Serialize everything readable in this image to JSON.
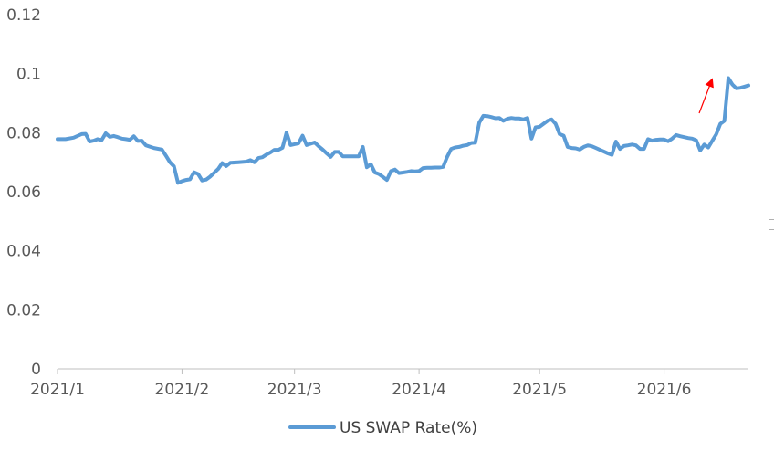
{
  "chart_data": {
    "type": "line",
    "title": "",
    "xlabel": "",
    "ylabel": "",
    "ylim": [
      0,
      0.12
    ],
    "ytick_labels": [
      "0",
      "0.02",
      "0.04",
      "0.06",
      "0.08",
      "0.1",
      "0.12"
    ],
    "yticks": [
      0,
      0.02,
      0.04,
      0.06,
      0.08,
      0.1,
      0.12
    ],
    "xtick_labels": [
      "2021/1",
      "2021/2",
      "2021/3",
      "2021/4",
      "2021/5",
      "2021/6"
    ],
    "xticks": [
      0,
      31,
      59,
      90,
      120,
      151
    ],
    "xlim": [
      0,
      172
    ],
    "grid": false,
    "legend_position": "bottom",
    "series": [
      {
        "name": "US SWAP Rate(%)",
        "color": "#5b9bd5",
        "x": [
          0,
          2,
          4,
          6,
          7,
          8,
          9,
          10,
          11,
          12,
          13,
          14,
          15,
          16,
          17,
          18,
          19,
          20,
          21,
          22,
          24,
          26,
          27,
          28,
          29,
          30,
          31,
          32,
          33,
          34,
          35,
          36,
          37,
          38,
          39,
          40,
          41,
          42,
          43,
          45,
          47,
          48,
          49,
          50,
          51,
          52,
          53,
          54,
          55,
          56,
          57,
          58,
          59,
          60,
          61,
          62,
          64,
          65,
          66,
          67,
          68,
          69,
          70,
          71,
          72,
          73,
          74,
          75,
          76,
          77,
          78,
          79,
          80,
          81,
          82,
          83,
          84,
          85,
          86,
          87,
          88,
          89,
          90,
          91,
          92,
          93,
          94,
          95,
          96,
          97,
          98,
          99,
          100,
          101,
          102,
          103,
          104,
          105,
          106,
          107,
          108,
          109,
          110,
          111,
          112,
          113,
          114,
          115,
          116,
          117,
          118,
          119,
          120,
          121,
          122,
          123,
          124,
          125,
          126,
          127,
          128,
          129,
          130,
          131,
          132,
          133,
          134,
          135,
          136,
          137,
          138,
          139,
          140,
          141,
          142,
          143,
          144,
          145,
          146,
          147,
          148,
          149,
          150,
          151,
          152,
          153,
          154,
          155,
          156,
          157,
          158,
          159,
          160,
          161,
          162,
          163,
          164,
          165,
          166,
          167,
          168,
          169,
          170,
          171,
          172
        ],
        "values": [
          0.0778,
          0.0778,
          0.0783,
          0.0795,
          0.0796,
          0.077,
          0.0773,
          0.0778,
          0.0775,
          0.0798,
          0.0786,
          0.0789,
          0.0785,
          0.078,
          0.0778,
          0.0776,
          0.0788,
          0.0772,
          0.0773,
          0.0757,
          0.0748,
          0.0743,
          0.0722,
          0.07,
          0.0686,
          0.063,
          0.0636,
          0.064,
          0.0642,
          0.0666,
          0.066,
          0.0638,
          0.0641,
          0.0651,
          0.0664,
          0.0677,
          0.0697,
          0.0687,
          0.0698,
          0.07,
          0.0702,
          0.0707,
          0.07,
          0.0714,
          0.0717,
          0.0726,
          0.0733,
          0.0742,
          0.0742,
          0.0749,
          0.08,
          0.0758,
          0.0761,
          0.0764,
          0.079,
          0.0758,
          0.0767,
          0.0754,
          0.0743,
          0.073,
          0.0718,
          0.0735,
          0.0735,
          0.072,
          0.072,
          0.072,
          0.072,
          0.072,
          0.0752,
          0.0683,
          0.0693,
          0.0665,
          0.066,
          0.065,
          0.064,
          0.067,
          0.0675,
          0.0663,
          0.0665,
          0.0667,
          0.067,
          0.0669,
          0.067,
          0.068,
          0.0681,
          0.0681,
          0.0682,
          0.0682,
          0.0684,
          0.0718,
          0.0745,
          0.075,
          0.0752,
          0.0756,
          0.0758,
          0.0765,
          0.0766,
          0.0834,
          0.0857,
          0.0856,
          0.0853,
          0.0849,
          0.085,
          0.084,
          0.0847,
          0.085,
          0.0848,
          0.0848,
          0.0845,
          0.085,
          0.078,
          0.0818,
          0.082,
          0.083,
          0.084,
          0.0845,
          0.083,
          0.0795,
          0.079,
          0.0752,
          0.0748,
          0.0747,
          0.0743,
          0.0752,
          0.0757,
          0.0754,
          0.0748,
          0.0742,
          0.0736,
          0.073,
          0.0725,
          0.077,
          0.0745,
          0.0755,
          0.0757,
          0.076,
          0.0757,
          0.0745,
          0.0745,
          0.0778,
          0.0773,
          0.0776,
          0.0777,
          0.0777,
          0.0771,
          0.078,
          0.0792,
          0.0788,
          0.0785,
          0.0782,
          0.078,
          0.0774,
          0.074,
          0.076,
          0.075,
          0.0773,
          0.0795,
          0.083,
          0.084,
          0.0985,
          0.0963,
          0.095,
          0.0952,
          0.0956,
          0.096
        ]
      }
    ],
    "annotations": [
      {
        "type": "arrow",
        "color": "#ff0000",
        "direction": "up"
      }
    ]
  }
}
